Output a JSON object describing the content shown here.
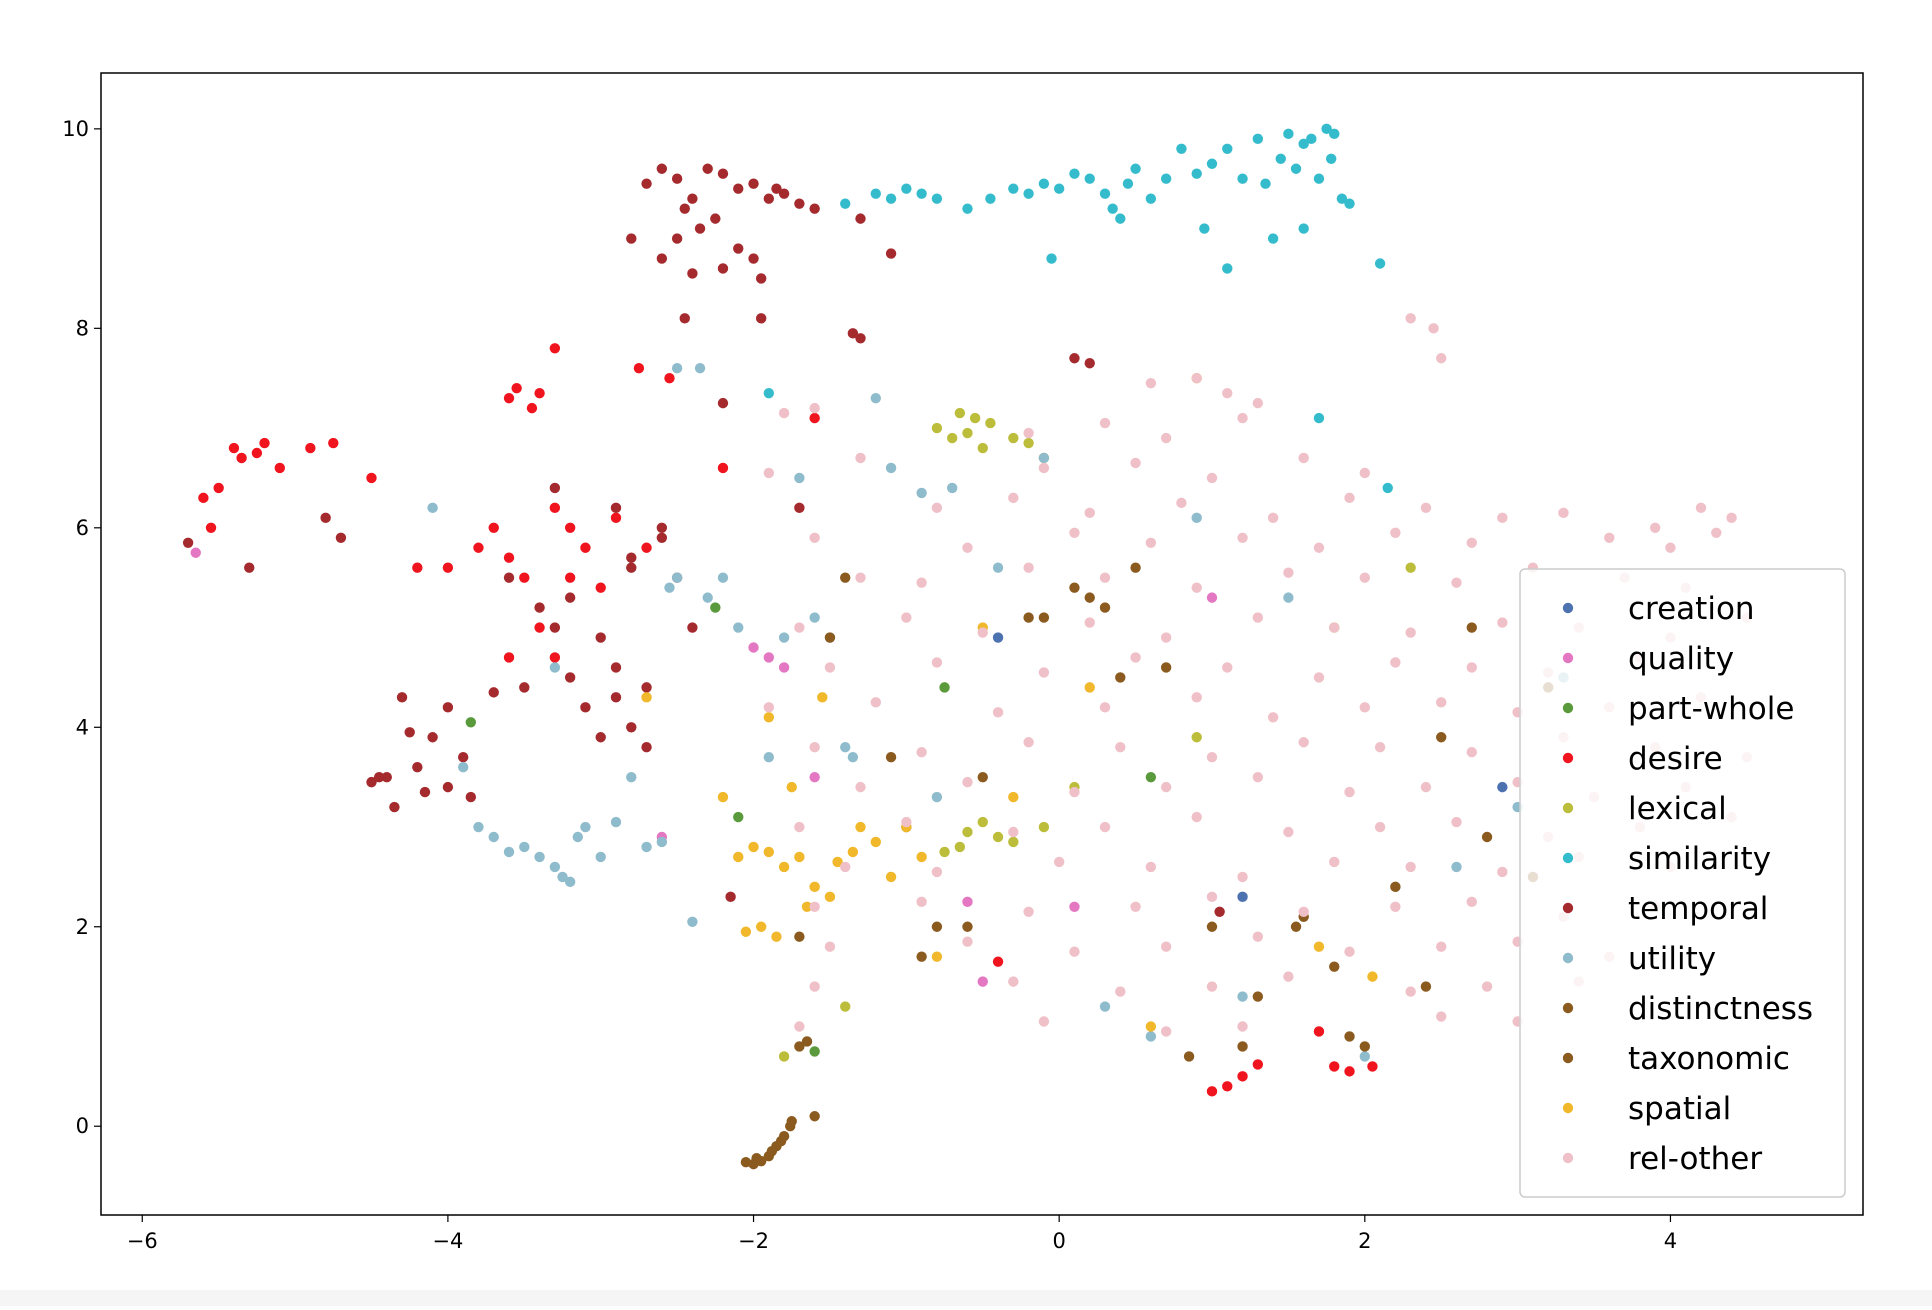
{
  "chart_data": {
    "type": "scatter",
    "xlim": [
      -6.27,
      5.26
    ],
    "ylim": [
      -0.89,
      10.56
    ],
    "xticks": [
      {
        "value": -6,
        "label": "−6"
      },
      {
        "value": -4,
        "label": "−4"
      },
      {
        "value": -2,
        "label": "−2"
      },
      0,
      2,
      4
    ],
    "yticks": [
      0,
      2,
      4,
      6,
      8,
      10
    ],
    "legend": "lower right",
    "series": [
      {
        "name": "creation",
        "color": "#4c72b0",
        "x": [
          -0.4,
          1.2,
          2.9
        ],
        "values": [
          4.9,
          2.3,
          3.4
        ]
      },
      {
        "name": "quality",
        "color": "#e377c2",
        "x": [
          -5.65,
          -2.0,
          -1.9,
          -2.6,
          -0.6,
          -1.6,
          0.1,
          1.0,
          -0.5,
          -1.8
        ],
        "values": [
          5.75,
          4.8,
          4.7,
          2.9,
          2.25,
          3.5,
          2.2,
          5.3,
          1.45,
          4.6
        ]
      },
      {
        "name": "part-whole",
        "color": "#5a9a3c",
        "x": [
          -3.85,
          -2.25,
          -2.1,
          -1.6,
          -0.75,
          0.6
        ],
        "values": [
          4.05,
          5.2,
          3.1,
          0.75,
          4.4,
          3.5
        ]
      },
      {
        "name": "desire",
        "color": "#f0141e",
        "x": [
          -5.6,
          -5.55,
          -5.5,
          -5.4,
          -5.35,
          -5.25,
          -5.2,
          -5.1,
          -4.9,
          -4.75,
          -4.5,
          -3.6,
          -3.55,
          -3.45,
          -3.4,
          -3.3,
          -3.7,
          -3.6,
          -3.5,
          -3.3,
          -3.2,
          -3.1,
          -3.0,
          -2.9,
          -3.4,
          -3.3,
          -3.6,
          -2.75,
          -2.55,
          -4.2,
          -4.0,
          -3.8,
          -3.2,
          -2.7,
          -1.6,
          -2.2,
          1.0,
          1.1,
          1.2,
          1.3,
          1.8,
          1.9,
          2.05,
          1.7,
          -0.4
        ],
        "values": [
          6.3,
          6.0,
          6.4,
          6.8,
          6.7,
          6.75,
          6.85,
          6.6,
          6.8,
          6.85,
          6.5,
          7.3,
          7.4,
          7.2,
          7.35,
          7.8,
          6.0,
          5.7,
          5.5,
          6.2,
          6.0,
          5.8,
          5.4,
          6.1,
          5.0,
          4.7,
          4.7,
          7.6,
          7.5,
          5.6,
          5.6,
          5.8,
          5.5,
          5.8,
          7.1,
          6.6,
          0.35,
          0.4,
          0.5,
          0.62,
          0.6,
          0.55,
          0.6,
          0.95,
          1.65
        ]
      },
      {
        "name": "lexical",
        "color": "#bcbd3a",
        "x": [
          -0.8,
          -0.7,
          -0.65,
          -0.6,
          -0.55,
          -0.5,
          -0.45,
          -0.3,
          -0.2,
          -0.1,
          -0.75,
          -0.65,
          -0.6,
          -0.5,
          -0.4,
          -0.3,
          -0.1,
          0.1,
          -1.8,
          -1.4,
          0.9,
          1.8,
          2.3
        ],
        "values": [
          7.0,
          6.9,
          7.15,
          6.95,
          7.1,
          6.8,
          7.05,
          6.9,
          6.85,
          6.7,
          2.75,
          2.8,
          2.95,
          3.05,
          2.9,
          2.85,
          3.0,
          3.4,
          0.7,
          1.2,
          3.9,
          5.0,
          5.6
        ]
      },
      {
        "name": "similarity",
        "color": "#35bccc",
        "x": [
          -1.4,
          -1.2,
          -1.1,
          -1.0,
          -0.9,
          -0.8,
          -0.6,
          -0.45,
          -0.3,
          -0.2,
          -0.1,
          0.0,
          0.1,
          0.2,
          0.3,
          0.35,
          0.45,
          0.5,
          0.6,
          0.7,
          0.8,
          0.9,
          1.0,
          1.1,
          1.2,
          1.3,
          1.35,
          1.45,
          1.5,
          1.55,
          1.6,
          1.65,
          1.7,
          1.75,
          1.78,
          1.8,
          1.85,
          1.9,
          1.6,
          1.4,
          1.1,
          0.95,
          0.4,
          -0.05,
          2.1,
          1.7,
          2.15,
          -1.9
        ],
        "values": [
          9.25,
          9.35,
          9.3,
          9.4,
          9.35,
          9.3,
          9.2,
          9.3,
          9.4,
          9.35,
          9.45,
          9.4,
          9.55,
          9.5,
          9.35,
          9.2,
          9.45,
          9.6,
          9.3,
          9.5,
          9.8,
          9.55,
          9.65,
          9.8,
          9.5,
          9.9,
          9.45,
          9.7,
          9.95,
          9.6,
          9.85,
          9.9,
          9.5,
          10.0,
          9.7,
          9.95,
          9.3,
          9.25,
          9.0,
          8.9,
          8.6,
          9.0,
          9.1,
          8.7,
          8.65,
          7.1,
          6.4,
          7.35
        ]
      },
      {
        "name": "temporal",
        "color": "#a52a2e",
        "x": [
          -2.8,
          -2.7,
          -2.6,
          -2.5,
          -2.45,
          -2.4,
          -2.3,
          -2.25,
          -2.2,
          -2.1,
          -2.0,
          -1.9,
          -1.85,
          -1.8,
          -1.7,
          -1.6,
          -2.6,
          -2.5,
          -2.4,
          -2.35,
          -2.2,
          -2.1,
          -2.0,
          -1.95,
          -1.3,
          -1.1,
          -2.45,
          -1.95,
          -1.35,
          -4.5,
          -4.4,
          -4.3,
          -4.2,
          -4.1,
          -4.0,
          -3.9,
          -4.35,
          -4.25,
          -4.15,
          -4.0,
          -3.85,
          -4.45,
          -3.7,
          -3.4,
          -3.3,
          -3.2,
          -3.0,
          -2.9,
          -2.8,
          -2.7,
          -2.6,
          -2.5,
          -2.4,
          -3.1,
          -3.0,
          -2.9,
          -2.8,
          -2.7,
          -3.5,
          -3.6,
          -3.2,
          -2.6,
          -2.9,
          -2.8,
          -3.3,
          -5.7,
          -5.3,
          -4.8,
          -4.7,
          -2.2,
          -2.15,
          0.1,
          0.2,
          -1.7,
          -1.3,
          1.05
        ],
        "values": [
          8.9,
          9.45,
          9.6,
          9.5,
          9.2,
          9.3,
          9.6,
          9.1,
          9.55,
          9.4,
          9.45,
          9.3,
          9.4,
          9.35,
          9.25,
          9.2,
          8.7,
          8.9,
          8.55,
          9.0,
          8.6,
          8.8,
          8.7,
          8.5,
          9.1,
          8.75,
          8.1,
          8.1,
          7.95,
          3.45,
          3.5,
          4.3,
          3.6,
          3.9,
          3.4,
          3.7,
          3.2,
          3.95,
          3.35,
          4.2,
          3.3,
          3.5,
          4.35,
          5.2,
          5.0,
          4.5,
          4.9,
          4.6,
          5.6,
          4.4,
          5.9,
          5.5,
          5.0,
          4.2,
          3.9,
          4.3,
          4.0,
          3.8,
          4.4,
          5.5,
          5.3,
          6.0,
          6.2,
          5.7,
          6.4,
          5.85,
          5.6,
          6.1,
          5.9,
          7.25,
          2.3,
          7.7,
          7.65,
          6.2,
          7.9,
          2.15
        ]
      },
      {
        "name": "utility",
        "color": "#8fbccc",
        "x": [
          -3.9,
          -3.8,
          -3.7,
          -3.6,
          -3.5,
          -3.4,
          -3.3,
          -3.25,
          -3.2,
          -3.15,
          -3.1,
          -3.0,
          -2.9,
          -2.8,
          -2.7,
          -2.6,
          -2.55,
          -2.5,
          -2.4,
          -2.3,
          -2.2,
          -2.1,
          -1.9,
          -1.8,
          -1.7,
          -1.6,
          -1.5,
          -1.4,
          -1.35,
          -1.2,
          -1.1,
          -0.9,
          -0.8,
          -0.7,
          -0.4,
          -0.1,
          0.3,
          0.6,
          0.9,
          1.2,
          1.5,
          2.0,
          2.6,
          3.0,
          3.3,
          -4.1,
          -3.3,
          -2.5,
          -2.35
        ],
        "values": [
          3.6,
          3.0,
          2.9,
          2.75,
          2.8,
          2.7,
          2.6,
          2.5,
          2.45,
          2.9,
          3.0,
          2.7,
          3.05,
          3.5,
          2.8,
          2.85,
          5.4,
          5.5,
          2.05,
          5.3,
          5.5,
          5.0,
          3.7,
          4.9,
          6.5,
          5.1,
          4.9,
          3.8,
          3.7,
          7.3,
          6.6,
          6.35,
          3.3,
          6.4,
          5.6,
          6.7,
          1.2,
          0.9,
          6.1,
          1.3,
          5.3,
          0.7,
          2.6,
          3.2,
          4.5,
          6.2,
          4.6,
          7.6,
          7.6
        ]
      },
      {
        "name": "distinctness",
        "color": "#8b5a1e",
        "x": [
          -2.0,
          -1.95,
          -1.9,
          -1.85,
          -1.8,
          -1.75,
          -1.6,
          -1.65,
          -1.7,
          -1.4,
          -1.1,
          -0.6,
          -0.2,
          0.1,
          0.3,
          0.7,
          1.0,
          1.3,
          1.6,
          1.9,
          2.2,
          2.5,
          2.8,
          3.1,
          -0.9,
          0.5
        ],
        "values": [
          -0.38,
          -0.35,
          -0.3,
          -0.2,
          -0.1,
          0.05,
          0.1,
          0.85,
          1.9,
          5.5,
          3.7,
          2.0,
          5.1,
          5.4,
          5.2,
          4.6,
          2.0,
          1.3,
          2.1,
          0.9,
          2.4,
          3.9,
          2.9,
          2.5,
          1.7,
          5.6
        ]
      },
      {
        "name": "taxonomic",
        "color": "#8b5a1e",
        "x": [
          -2.05,
          -1.98,
          -1.88,
          -1.82,
          -1.76,
          -1.7,
          -1.5,
          -0.8,
          -0.5,
          -0.1,
          0.4,
          0.85,
          1.2,
          1.55,
          1.8,
          2.0,
          2.4,
          2.7,
          3.2,
          -1.0,
          0.2
        ],
        "values": [
          -0.36,
          -0.32,
          -0.25,
          -0.15,
          0.0,
          0.8,
          4.9,
          2.0,
          3.5,
          5.1,
          4.5,
          0.7,
          0.8,
          2.0,
          1.6,
          0.8,
          1.4,
          5.0,
          4.4,
          3.0,
          5.3
        ]
      },
      {
        "name": "spatial",
        "color": "#f0b82a",
        "x": [
          -2.1,
          -2.0,
          -1.9,
          -1.8,
          -1.7,
          -1.6,
          -1.5,
          -1.45,
          -1.35,
          -1.3,
          -1.2,
          -1.1,
          -1.0,
          -0.9,
          -2.05,
          -1.95,
          -1.85,
          -1.65,
          -1.55,
          -2.2,
          -1.9,
          -1.75,
          -0.8,
          -0.3,
          0.2,
          0.6,
          0.9,
          1.7,
          2.05,
          -2.7,
          -0.5
        ],
        "values": [
          2.7,
          2.8,
          2.75,
          2.6,
          2.7,
          2.4,
          2.3,
          2.65,
          2.75,
          3.0,
          2.85,
          2.5,
          3.0,
          2.7,
          1.95,
          2.0,
          1.9,
          2.2,
          4.3,
          3.3,
          4.1,
          3.4,
          1.7,
          3.3,
          4.4,
          1.0,
          7.5,
          1.8,
          1.5,
          4.3,
          5.0
        ]
      },
      {
        "name": "rel-other",
        "color": "#f0c0c8",
        "x": [
          -1.8,
          -1.6,
          0.6,
          0.9,
          1.1,
          1.3,
          -0.2,
          0.3,
          0.7,
          1.2,
          -1.9,
          -1.3,
          -0.1,
          0.5,
          1.0,
          1.6,
          2.0,
          -0.8,
          -0.3,
          0.2,
          0.8,
          1.4,
          1.9,
          2.4,
          2.9,
          3.3,
          3.9,
          4.2,
          4.4,
          -1.6,
          -0.6,
          0.1,
          0.6,
          1.2,
          1.7,
          2.2,
          2.7,
          3.6,
          4.0,
          4.3,
          -1.3,
          -0.9,
          -0.2,
          0.3,
          0.9,
          1.5,
          2.0,
          2.6,
          3.1,
          3.7,
          4.1,
          -1.7,
          -1.0,
          -0.5,
          0.2,
          0.7,
          1.3,
          1.8,
          2.3,
          2.9,
          3.4,
          4.0,
          4.5,
          -1.5,
          -0.8,
          -0.1,
          0.5,
          1.1,
          1.7,
          2.2,
          2.7,
          3.2,
          3.8,
          -1.9,
          -1.2,
          -0.4,
          0.3,
          0.9,
          1.4,
          2.0,
          2.5,
          3.0,
          3.6,
          4.2,
          -1.6,
          -0.9,
          -0.2,
          0.4,
          1.0,
          1.6,
          2.1,
          2.7,
          3.3,
          3.9,
          4.5,
          -1.3,
          -0.6,
          0.1,
          0.7,
          1.3,
          1.9,
          2.4,
          3.0,
          3.5,
          4.1,
          -1.7,
          -1.0,
          -0.3,
          0.3,
          0.9,
          1.5,
          2.1,
          2.6,
          3.2,
          3.8,
          4.4,
          -1.4,
          -0.8,
          0.0,
          0.6,
          1.2,
          1.8,
          2.3,
          2.9,
          3.4,
          4.0,
          -1.6,
          -0.9,
          -0.2,
          0.5,
          1.0,
          1.6,
          2.2,
          2.7,
          3.3,
          3.9,
          -1.5,
          -0.6,
          0.1,
          0.7,
          1.3,
          1.9,
          2.5,
          3.0,
          3.6,
          -1.6,
          -0.3,
          0.4,
          1.0,
          1.5,
          2.3,
          2.8,
          3.4,
          -1.7,
          -0.1,
          0.7,
          1.2,
          2.5,
          3.0,
          2.3,
          2.45,
          2.5
        ],
        "values": [
          7.15,
          7.2,
          7.45,
          7.5,
          7.35,
          7.25,
          6.95,
          7.05,
          6.9,
          7.1,
          6.55,
          6.7,
          6.6,
          6.65,
          6.5,
          6.7,
          6.55,
          6.2,
          6.3,
          6.15,
          6.25,
          6.1,
          6.3,
          6.2,
          6.1,
          6.15,
          6.0,
          6.2,
          6.1,
          5.9,
          5.8,
          5.95,
          5.85,
          5.9,
          5.8,
          5.95,
          5.85,
          5.9,
          5.8,
          5.95,
          5.5,
          5.45,
          5.6,
          5.5,
          5.4,
          5.55,
          5.5,
          5.45,
          5.6,
          5.5,
          5.4,
          5.0,
          5.1,
          4.95,
          5.05,
          4.9,
          5.1,
          5.0,
          4.95,
          5.05,
          5.0,
          4.9,
          5.1,
          4.6,
          4.65,
          4.55,
          4.7,
          4.6,
          4.5,
          4.65,
          4.6,
          4.55,
          4.7,
          4.2,
          4.25,
          4.15,
          4.2,
          4.3,
          4.1,
          4.2,
          4.25,
          4.15,
          4.2,
          4.3,
          3.8,
          3.75,
          3.85,
          3.8,
          3.7,
          3.85,
          3.8,
          3.75,
          3.9,
          3.8,
          3.7,
          3.4,
          3.45,
          3.35,
          3.4,
          3.5,
          3.35,
          3.4,
          3.45,
          3.3,
          3.4,
          3.0,
          3.05,
          2.95,
          3.0,
          3.1,
          2.95,
          3.0,
          3.05,
          2.9,
          3.0,
          3.1,
          2.6,
          2.55,
          2.65,
          2.6,
          2.5,
          2.65,
          2.6,
          2.55,
          2.7,
          2.6,
          2.2,
          2.25,
          2.15,
          2.2,
          2.3,
          2.15,
          2.2,
          2.25,
          2.1,
          2.2,
          1.8,
          1.85,
          1.75,
          1.8,
          1.9,
          1.75,
          1.8,
          1.85,
          1.7,
          1.4,
          1.45,
          1.35,
          1.4,
          1.5,
          1.35,
          1.4,
          1.45,
          1.0,
          1.05,
          0.95,
          1.0,
          1.1,
          1.05,
          8.1,
          8.0,
          7.7
        ]
      }
    ]
  }
}
